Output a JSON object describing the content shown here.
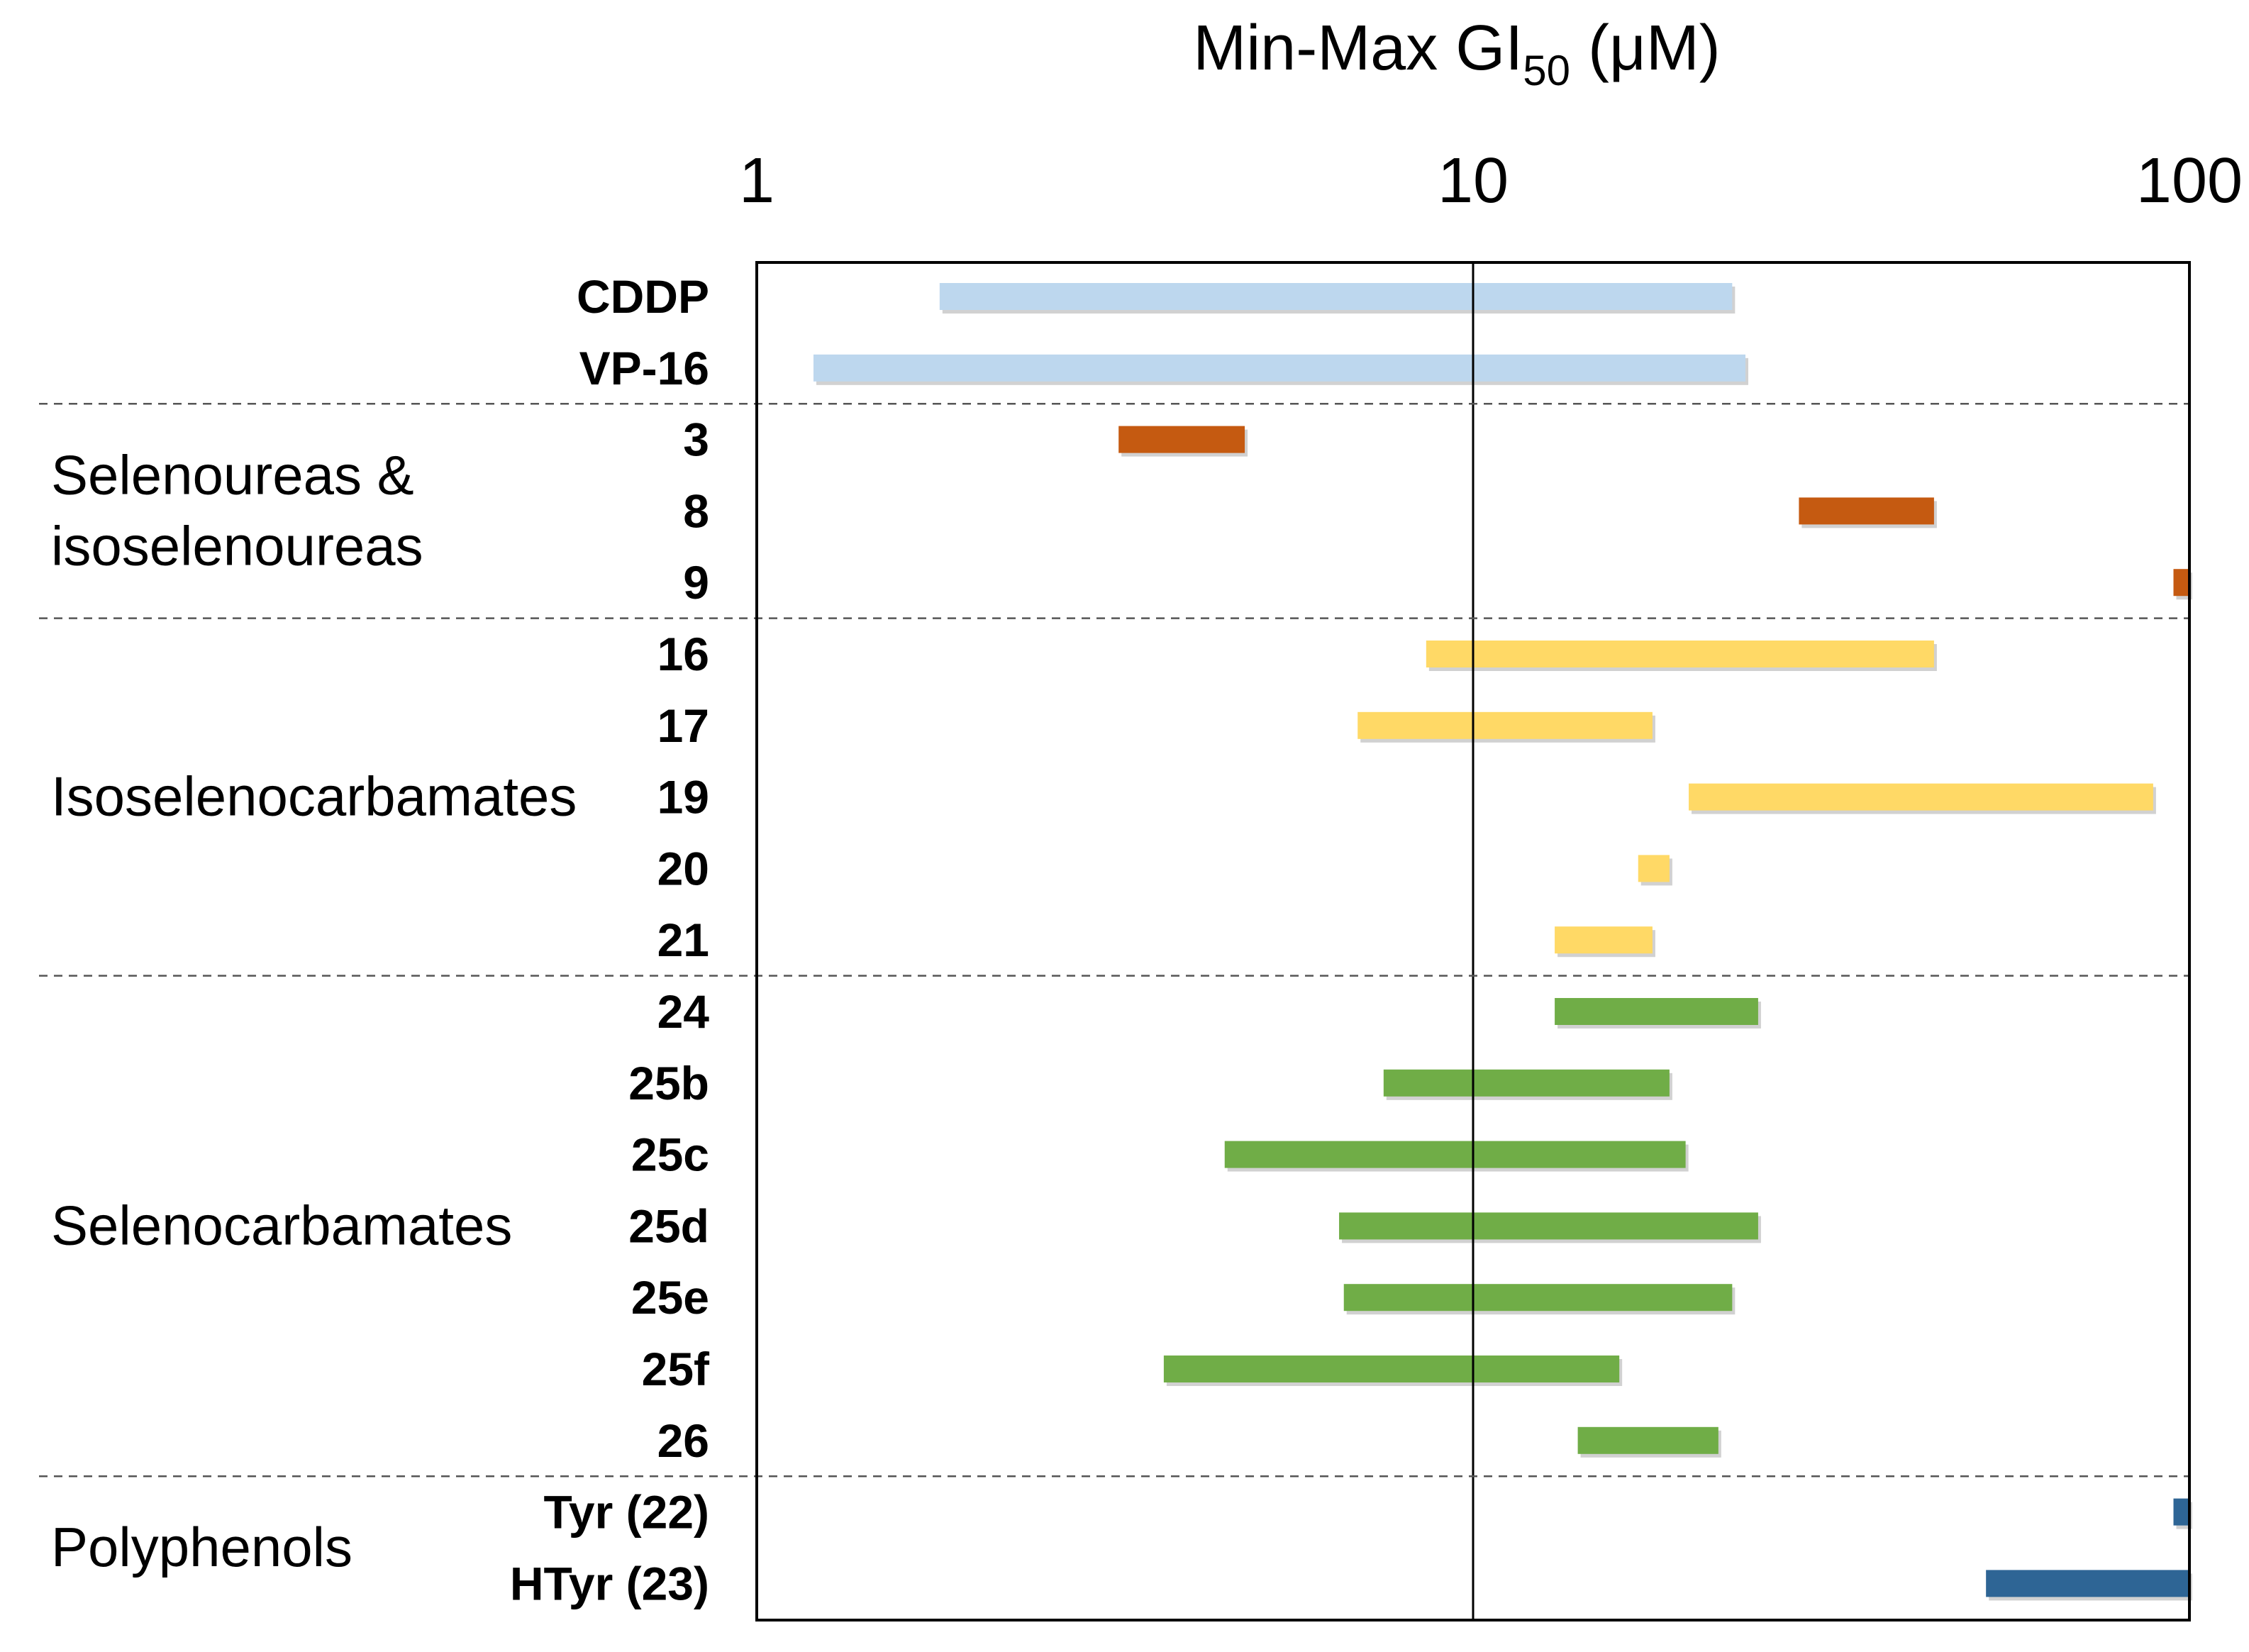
{
  "chart_data": {
    "type": "bar",
    "subtype": "range (floating horizontal bars)",
    "title": "Min-Max GI",
    "title_subscript": "50",
    "title_unit": " (μM)",
    "x_scale": "log",
    "xlim": [
      1,
      100
    ],
    "x_ticks": [
      {
        "value": 1,
        "label": "1"
      },
      {
        "value": 10,
        "label": "10"
      },
      {
        "value": 100,
        "label": "100"
      }
    ],
    "reference_line": 10,
    "colors": {
      "Reference": "#bdd7ee",
      "Selenoureas & isoselenoureas": "#c55a11",
      "Isoselenocarbamates": "#ffd966",
      "Selenocarbamates": "#70ad47",
      "Polyphenols": "#2e6595"
    },
    "groups": [
      {
        "name": "Reference",
        "label_lines": [],
        "rows": [
          "CDDP",
          "VP-16"
        ]
      },
      {
        "name": "Selenoureas & isoselenoureas",
        "label_lines": [
          "Selenoureas &",
          "isoselenoureas"
        ],
        "rows": [
          "3",
          "8",
          "9"
        ]
      },
      {
        "name": "Isoselenocarbamates",
        "label_lines": [
          "Isoselenocarbamates"
        ],
        "rows": [
          "16",
          "17",
          "19",
          "20",
          "21"
        ]
      },
      {
        "name": "Selenocarbamates",
        "label_lines": [
          "Selenocarbamates"
        ],
        "rows": [
          "24",
          "25b",
          "25c",
          "25d",
          "25e",
          "25f",
          "26"
        ]
      },
      {
        "name": "Polyphenols",
        "label_lines": [
          "Polyphenols"
        ],
        "rows": [
          "Tyr (22)",
          "HTyr (23)"
        ]
      }
    ],
    "series": [
      {
        "label": "CDDP",
        "group": "Reference",
        "min": 1.8,
        "max": 23
      },
      {
        "label": "VP-16",
        "group": "Reference",
        "min": 1.2,
        "max": 24
      },
      {
        "label": "3",
        "group": "Selenoureas & isoselenoureas",
        "min": 3.2,
        "max": 4.8
      },
      {
        "label": "8",
        "group": "Selenoureas & isoselenoureas",
        "min": 28.5,
        "max": 44
      },
      {
        "label": "9",
        "group": "Selenoureas & isoselenoureas",
        "min": 95,
        "max": 100
      },
      {
        "label": "16",
        "group": "Isoselenocarbamates",
        "min": 8.6,
        "max": 44
      },
      {
        "label": "17",
        "group": "Isoselenocarbamates",
        "min": 6.9,
        "max": 17.8
      },
      {
        "label": "19",
        "group": "Isoselenocarbamates",
        "min": 20,
        "max": 89
      },
      {
        "label": "20",
        "group": "Isoselenocarbamates",
        "min": 17,
        "max": 18.8
      },
      {
        "label": "21",
        "group": "Isoselenocarbamates",
        "min": 13,
        "max": 17.8
      },
      {
        "label": "24",
        "group": "Selenocarbamates",
        "min": 13,
        "max": 25
      },
      {
        "label": "25b",
        "group": "Selenocarbamates",
        "min": 7.5,
        "max": 18.8
      },
      {
        "label": "25c",
        "group": "Selenocarbamates",
        "min": 4.5,
        "max": 19.8
      },
      {
        "label": "25d",
        "group": "Selenocarbamates",
        "min": 6.5,
        "max": 25
      },
      {
        "label": "25e",
        "group": "Selenocarbamates",
        "min": 6.6,
        "max": 23
      },
      {
        "label": "25f",
        "group": "Selenocarbamates",
        "min": 3.7,
        "max": 16
      },
      {
        "label": "26",
        "group": "Selenocarbamates",
        "min": 14,
        "max": 22
      },
      {
        "label": "Tyr (22)",
        "group": "Polyphenols",
        "min": 95,
        "max": 100
      },
      {
        "label": "HTyr (23)",
        "group": "Polyphenols",
        "min": 52,
        "max": 100
      }
    ]
  }
}
